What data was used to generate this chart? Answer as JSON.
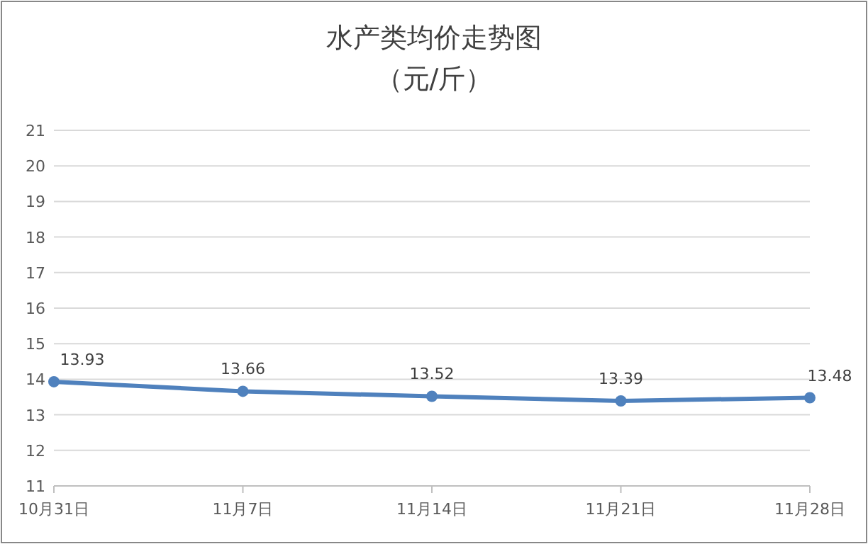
{
  "chart_data": {
    "type": "line",
    "title": "水产类均价走势图",
    "subtitle": "（元/斤）",
    "categories": [
      "10月31日",
      "11月7日",
      "11月14日",
      "11月21日",
      "11月28日"
    ],
    "series": [
      {
        "color": "#4f81bd",
        "values": [
          13.93,
          13.66,
          13.52,
          13.39,
          13.48
        ]
      }
    ],
    "ylim": [
      11,
      21
    ],
    "yticks": [
      11,
      12,
      13,
      14,
      15,
      16,
      17,
      18,
      19,
      20,
      21
    ],
    "grid": "y",
    "marker": "circle",
    "data_labels": true
  }
}
